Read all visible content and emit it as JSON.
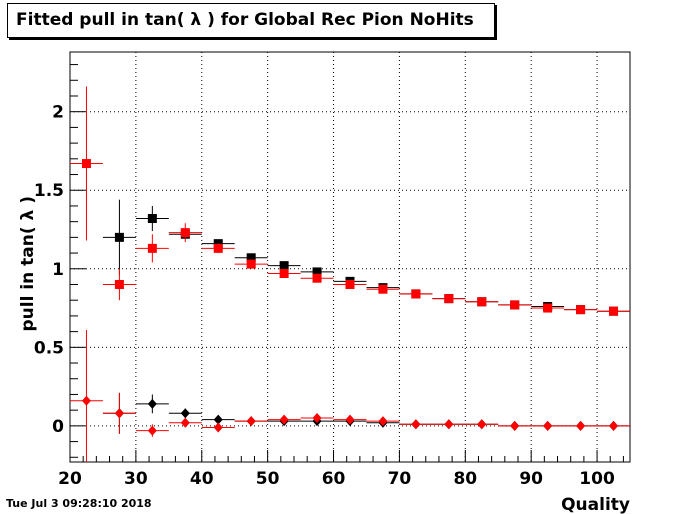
{
  "title": "Fitted pull in tan( λ ) for Global Rec Pion NoHits",
  "timestamp": "Tue Jul  3 09:28:10 2018",
  "chart_data": {
    "type": "scatter",
    "title": "Fitted pull in tan( λ ) for Global Rec Pion NoHits",
    "xlabel": "Quality",
    "ylabel": "pull in tan( λ )",
    "xlim": [
      20,
      105
    ],
    "ylim": [
      -0.23,
      2.38
    ],
    "xticks": [
      20,
      30,
      40,
      50,
      60,
      70,
      80,
      90,
      100
    ],
    "xtick_labels": [
      "20",
      "30",
      "40",
      "50",
      "60",
      "70",
      "80",
      "90",
      "100"
    ],
    "yticks": [
      0,
      0.5,
      1,
      1.5,
      2
    ],
    "ytick_labels": [
      "0",
      "0.5",
      "1",
      "1.5",
      "2"
    ],
    "grid": true,
    "bin_half_width": 2.5,
    "series": [
      {
        "marker": "square",
        "color": "#000000",
        "points": [
          {
            "x": 27.5,
            "y": 1.2,
            "err": 0.24
          },
          {
            "x": 32.5,
            "y": 1.32,
            "err": 0.08
          },
          {
            "x": 37.5,
            "y": 1.22,
            "err": 0.03
          },
          {
            "x": 42.5,
            "y": 1.16,
            "err": 0.02
          },
          {
            "x": 47.5,
            "y": 1.07,
            "err": 0.015
          },
          {
            "x": 52.5,
            "y": 1.02,
            "err": 0.01
          },
          {
            "x": 57.5,
            "y": 0.98,
            "err": 0.01
          },
          {
            "x": 62.5,
            "y": 0.92,
            "err": 0.01
          },
          {
            "x": 67.5,
            "y": 0.88,
            "err": 0.01
          },
          {
            "x": 72.5,
            "y": 0.84,
            "err": 0.005
          },
          {
            "x": 77.5,
            "y": 0.81,
            "err": 0.005
          },
          {
            "x": 82.5,
            "y": 0.79,
            "err": 0.005
          },
          {
            "x": 87.5,
            "y": 0.77,
            "err": 0.005
          },
          {
            "x": 92.5,
            "y": 0.76,
            "err": 0.005
          },
          {
            "x": 97.5,
            "y": 0.74,
            "err": 0.005
          },
          {
            "x": 102.5,
            "y": 0.73,
            "err": 0.005
          }
        ]
      },
      {
        "marker": "square",
        "color": "#ff0000",
        "points": [
          {
            "x": 22.5,
            "y": 1.67,
            "err": 0.49
          },
          {
            "x": 27.5,
            "y": 0.9,
            "err": 0.1
          },
          {
            "x": 32.5,
            "y": 1.13,
            "err": 0.09
          },
          {
            "x": 37.5,
            "y": 1.23,
            "err": 0.06
          },
          {
            "x": 42.5,
            "y": 1.13,
            "err": 0.03
          },
          {
            "x": 47.5,
            "y": 1.03,
            "err": 0.02
          },
          {
            "x": 52.5,
            "y": 0.97,
            "err": 0.015
          },
          {
            "x": 57.5,
            "y": 0.94,
            "err": 0.01
          },
          {
            "x": 62.5,
            "y": 0.9,
            "err": 0.01
          },
          {
            "x": 67.5,
            "y": 0.87,
            "err": 0.01
          },
          {
            "x": 72.5,
            "y": 0.84,
            "err": 0.005
          },
          {
            "x": 77.5,
            "y": 0.81,
            "err": 0.005
          },
          {
            "x": 82.5,
            "y": 0.79,
            "err": 0.005
          },
          {
            "x": 87.5,
            "y": 0.77,
            "err": 0.005
          },
          {
            "x": 92.5,
            "y": 0.75,
            "err": 0.005
          },
          {
            "x": 97.5,
            "y": 0.74,
            "err": 0.005
          },
          {
            "x": 102.5,
            "y": 0.73,
            "err": 0.005
          }
        ]
      },
      {
        "marker": "diamond",
        "color": "#000000",
        "points": [
          {
            "x": 27.5,
            "y": 0.08,
            "err": 0.13
          },
          {
            "x": 32.5,
            "y": 0.14,
            "err": 0.06
          },
          {
            "x": 37.5,
            "y": 0.08,
            "err": 0.03
          },
          {
            "x": 42.5,
            "y": 0.04,
            "err": 0.02
          },
          {
            "x": 47.5,
            "y": 0.03,
            "err": 0.01
          },
          {
            "x": 52.5,
            "y": 0.03,
            "err": 0.01
          },
          {
            "x": 57.5,
            "y": 0.03,
            "err": 0.01
          },
          {
            "x": 62.5,
            "y": 0.03,
            "err": 0.01
          },
          {
            "x": 67.5,
            "y": 0.02,
            "err": 0.005
          },
          {
            "x": 72.5,
            "y": 0.01,
            "err": 0.005
          },
          {
            "x": 77.5,
            "y": 0.01,
            "err": 0.005
          },
          {
            "x": 82.5,
            "y": 0.01,
            "err": 0.005
          },
          {
            "x": 87.5,
            "y": 0.0,
            "err": 0.005
          },
          {
            "x": 92.5,
            "y": 0.0,
            "err": 0.005
          },
          {
            "x": 97.5,
            "y": 0.0,
            "err": 0.005
          },
          {
            "x": 102.5,
            "y": 0.0,
            "err": 0.005
          }
        ]
      },
      {
        "marker": "diamond",
        "color": "#ff0000",
        "points": [
          {
            "x": 22.5,
            "y": 0.16,
            "err": 0.45
          },
          {
            "x": 27.5,
            "y": 0.08,
            "err": 0.13
          },
          {
            "x": 32.5,
            "y": -0.03,
            "err": 0.04
          },
          {
            "x": 37.5,
            "y": 0.02,
            "err": 0.02
          },
          {
            "x": 42.5,
            "y": -0.01,
            "err": 0.01
          },
          {
            "x": 47.5,
            "y": 0.03,
            "err": 0.01
          },
          {
            "x": 52.5,
            "y": 0.04,
            "err": 0.01
          },
          {
            "x": 57.5,
            "y": 0.05,
            "err": 0.01
          },
          {
            "x": 62.5,
            "y": 0.04,
            "err": 0.01
          },
          {
            "x": 67.5,
            "y": 0.03,
            "err": 0.005
          },
          {
            "x": 72.5,
            "y": 0.01,
            "err": 0.005
          },
          {
            "x": 77.5,
            "y": 0.01,
            "err": 0.005
          },
          {
            "x": 82.5,
            "y": 0.01,
            "err": 0.005
          },
          {
            "x": 87.5,
            "y": 0.0,
            "err": 0.005
          },
          {
            "x": 92.5,
            "y": 0.0,
            "err": 0.005
          },
          {
            "x": 97.5,
            "y": 0.0,
            "err": 0.005
          },
          {
            "x": 102.5,
            "y": 0.0,
            "err": 0.005
          }
        ]
      }
    ]
  }
}
